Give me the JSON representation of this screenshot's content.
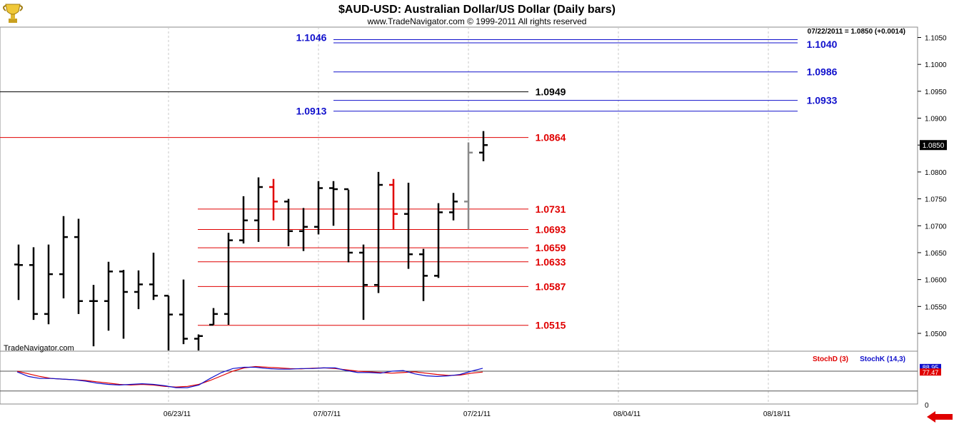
{
  "header": {
    "title": "$AUD-USD:  Australian Dollar/US Dollar  (Daily bars)",
    "subtitle": "www.TradeNavigator.com © 1999-2011 All rights reserved",
    "last_quote": "07/22/2011 = 1.0850 (+0.0014)",
    "watermark": "TradeNavigator.com",
    "current_price_label": "1.0850"
  },
  "colors": {
    "price_bar": "#000000",
    "down_bar": "#e00000",
    "gray_bar": "#8a8a8a",
    "blue_level": "#1010cc",
    "red_level": "#e00000",
    "black_level": "#000000",
    "stoch_d": "#e00000",
    "stoch_k": "#1010cc",
    "grid": "#c8c8c8"
  },
  "icons": {
    "logo": "trophy-icon",
    "nav_arrow": "left-arrow-icon"
  },
  "chart_data": {
    "type": "ohlc",
    "title": "$AUD-USD:  Australian Dollar/US Dollar  (Daily bars)",
    "x_axis_ticks": [
      "06/23/11",
      "07/07/11",
      "07/21/11",
      "08/04/11",
      "08/18/11"
    ],
    "y_axis_ticks": [
      "1.0500",
      "1.0550",
      "1.0600",
      "1.0650",
      "1.0700",
      "1.0750",
      "1.0800",
      "1.0850",
      "1.0900",
      "1.0950",
      "1.1000",
      "1.1050"
    ],
    "ylim": [
      1.0465,
      1.1068
    ],
    "last_price": 1.085,
    "bars": [
      {
        "o": 1.0628,
        "h": 1.0665,
        "l": 1.0562,
        "c": 1.0627,
        "color": "black"
      },
      {
        "o": 1.0627,
        "h": 1.066,
        "l": 1.0525,
        "c": 1.0536,
        "color": "black"
      },
      {
        "o": 1.0536,
        "h": 1.0665,
        "l": 1.0517,
        "c": 1.061,
        "color": "black"
      },
      {
        "o": 1.061,
        "h": 1.0718,
        "l": 1.0565,
        "c": 1.0679,
        "color": "black"
      },
      {
        "o": 1.0679,
        "h": 1.0713,
        "l": 1.0536,
        "c": 1.056,
        "color": "black"
      },
      {
        "o": 1.056,
        "h": 1.059,
        "l": 1.0476,
        "c": 1.056,
        "color": "black"
      },
      {
        "o": 1.056,
        "h": 1.0633,
        "l": 1.0505,
        "c": 1.0615,
        "color": "black"
      },
      {
        "o": 1.0615,
        "h": 1.0618,
        "l": 1.049,
        "c": 1.0577,
        "color": "black"
      },
      {
        "o": 1.0577,
        "h": 1.0617,
        "l": 1.0545,
        "c": 1.0591,
        "color": "black"
      },
      {
        "o": 1.0591,
        "h": 1.065,
        "l": 1.0562,
        "c": 1.057,
        "color": "black"
      },
      {
        "o": 1.057,
        "h": 1.057,
        "l": 1.0466,
        "c": 1.0535,
        "color": "black"
      },
      {
        "o": 1.0535,
        "h": 1.06,
        "l": 1.048,
        "c": 1.049,
        "color": "black"
      },
      {
        "o": 1.049,
        "h": 1.0498,
        "l": 1.0466,
        "c": 1.0495,
        "color": "black"
      },
      {
        "o": 1.0516,
        "h": 1.0547,
        "l": 1.0516,
        "c": 1.0536,
        "color": "black"
      },
      {
        "o": 1.0536,
        "h": 1.0687,
        "l": 1.0516,
        "c": 1.0673,
        "color": "black"
      },
      {
        "o": 1.0673,
        "h": 1.0755,
        "l": 1.0667,
        "c": 1.071,
        "color": "black"
      },
      {
        "o": 1.071,
        "h": 1.079,
        "l": 1.067,
        "c": 1.0772,
        "color": "black"
      },
      {
        "o": 1.0772,
        "h": 1.0787,
        "l": 1.071,
        "c": 1.0745,
        "color": "red"
      },
      {
        "o": 1.0745,
        "h": 1.075,
        "l": 1.0662,
        "c": 1.069,
        "color": "black"
      },
      {
        "o": 1.069,
        "h": 1.0733,
        "l": 1.0653,
        "c": 1.0698,
        "color": "black"
      },
      {
        "o": 1.0698,
        "h": 1.0783,
        "l": 1.0684,
        "c": 1.077,
        "color": "black"
      },
      {
        "o": 1.077,
        "h": 1.0783,
        "l": 1.07,
        "c": 1.0768,
        "color": "black"
      },
      {
        "o": 1.0768,
        "h": 1.0767,
        "l": 1.0632,
        "c": 1.065,
        "color": "black"
      },
      {
        "o": 1.065,
        "h": 1.0665,
        "l": 1.0525,
        "c": 1.059,
        "color": "black"
      },
      {
        "o": 1.059,
        "h": 1.08,
        "l": 1.0575,
        "c": 1.0776,
        "color": "black"
      },
      {
        "o": 1.0776,
        "h": 1.0787,
        "l": 1.0693,
        "c": 1.0722,
        "color": "red"
      },
      {
        "o": 1.0722,
        "h": 1.078,
        "l": 1.062,
        "c": 1.0647,
        "color": "black"
      },
      {
        "o": 1.0647,
        "h": 1.0657,
        "l": 1.056,
        "c": 1.0607,
        "color": "black"
      },
      {
        "o": 1.0607,
        "h": 1.0742,
        "l": 1.0603,
        "c": 1.0725,
        "color": "black"
      },
      {
        "o": 1.0725,
        "h": 1.0761,
        "l": 1.071,
        "c": 1.0745,
        "color": "black"
      },
      {
        "o": 1.0745,
        "h": 1.0855,
        "l": 1.0693,
        "c": 1.0836,
        "color": "gray"
      },
      {
        "o": 1.0836,
        "h": 1.0876,
        "l": 1.082,
        "c": 1.085,
        "color": "black"
      }
    ],
    "levels": [
      {
        "label": "1.1046",
        "value": 1.1046,
        "color": "blue"
      },
      {
        "label": "1.1040",
        "value": 1.104,
        "color": "blue"
      },
      {
        "label": "1.0986",
        "value": 1.0986,
        "color": "blue"
      },
      {
        "label": "1.0949",
        "value": 1.0949,
        "color": "black"
      },
      {
        "label": "1.0933",
        "value": 1.0933,
        "color": "blue"
      },
      {
        "label": "1.0913",
        "value": 1.0913,
        "color": "blue"
      },
      {
        "label": "1.0864",
        "value": 1.0864,
        "color": "red"
      },
      {
        "label": "1.0731",
        "value": 1.0731,
        "color": "red"
      },
      {
        "label": "1.0693",
        "value": 1.0693,
        "color": "red"
      },
      {
        "label": "1.0659",
        "value": 1.0659,
        "color": "red"
      },
      {
        "label": "1.0633",
        "value": 1.0633,
        "color": "red"
      },
      {
        "label": "1.0587",
        "value": 1.0587,
        "color": "red"
      },
      {
        "label": "1.0515",
        "value": 1.0515,
        "color": "red"
      }
    ],
    "stochastic": {
      "legend_d": "StochD (3)",
      "legend_k": "StochK (14,3)",
      "ylim": [
        0,
        100
      ],
      "y_ticks": [
        "0"
      ],
      "label_k": "88.95",
      "label_d": "77.47",
      "stoch_d": [
        80,
        72,
        64,
        58,
        56,
        54,
        52,
        48,
        44,
        40,
        38,
        40,
        38,
        34,
        32,
        34,
        40,
        52,
        66,
        80,
        90,
        94,
        92,
        90,
        88,
        87,
        89,
        90,
        88,
        84,
        80,
        78,
        76,
        74,
        76,
        78,
        74,
        70,
        67,
        68,
        74,
        77.47
      ],
      "stoch_k": [
        78,
        64,
        58,
        58,
        56,
        54,
        50,
        44,
        40,
        38,
        40,
        42,
        40,
        36,
        30,
        30,
        38,
        58,
        76,
        88,
        92,
        92,
        88,
        86,
        86,
        88,
        88,
        90,
        90,
        82,
        76,
        76,
        74,
        80,
        82,
        72,
        66,
        64,
        66,
        70,
        80,
        88.95
      ]
    }
  }
}
